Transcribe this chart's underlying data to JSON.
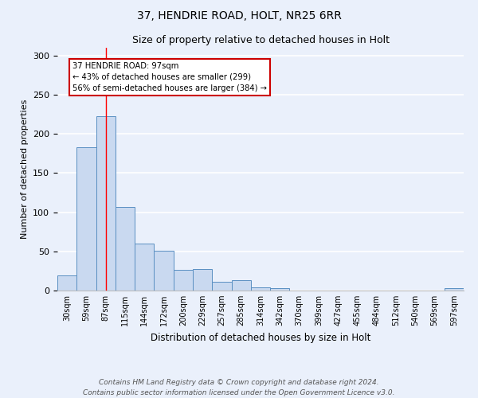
{
  "title1": "37, HENDRIE ROAD, HOLT, NR25 6RR",
  "title2": "Size of property relative to detached houses in Holt",
  "xlabel": "Distribution of detached houses by size in Holt",
  "ylabel": "Number of detached properties",
  "bar_labels": [
    "30sqm",
    "59sqm",
    "87sqm",
    "115sqm",
    "144sqm",
    "172sqm",
    "200sqm",
    "229sqm",
    "257sqm",
    "285sqm",
    "314sqm",
    "342sqm",
    "370sqm",
    "399sqm",
    "427sqm",
    "455sqm",
    "484sqm",
    "512sqm",
    "540sqm",
    "569sqm",
    "597sqm"
  ],
  "bar_values": [
    19,
    183,
    223,
    107,
    60,
    51,
    26,
    27,
    11,
    13,
    4,
    3,
    0,
    0,
    0,
    0,
    0,
    0,
    0,
    0,
    3
  ],
  "bar_color": "#c9d9f0",
  "bar_edge_color": "#5a8fc2",
  "bg_color": "#eaf0fb",
  "grid_color": "#ffffff",
  "annotation_text": "37 HENDRIE ROAD: 97sqm\n← 43% of detached houses are smaller (299)\n56% of semi-detached houses are larger (384) →",
  "red_line_x": 2.0,
  "annotation_box_color": "#ffffff",
  "annotation_box_edge": "#cc0000",
  "annotation_text_color": "#000000",
  "ylim": [
    0,
    310
  ],
  "yticks": [
    0,
    50,
    100,
    150,
    200,
    250,
    300
  ],
  "footer": "Contains HM Land Registry data © Crown copyright and database right 2024.\nContains public sector information licensed under the Open Government Licence v3.0."
}
